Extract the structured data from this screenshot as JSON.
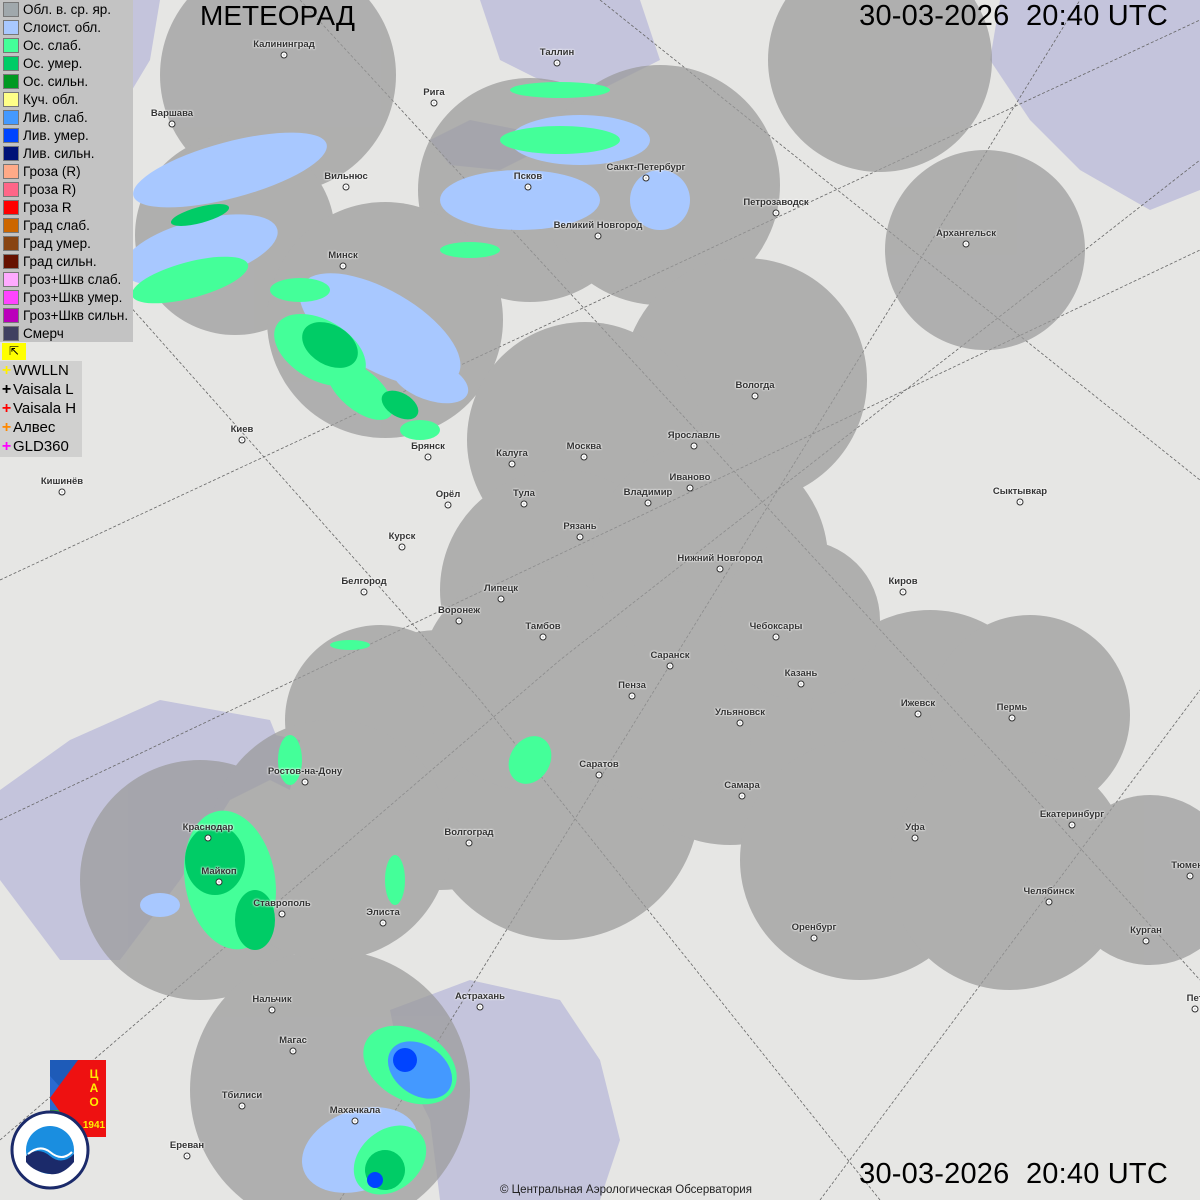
{
  "header": {
    "title": "МЕТЕОРАД",
    "datetime_top": "30-03-2026  20:40 UTC",
    "datetime_bottom": "30-03-2026  20:40 UTC"
  },
  "legend": [
    {
      "label": "Обл. в. ср. яр.",
      "color": "#a0a8ac"
    },
    {
      "label": "Слоист. обл.",
      "color": "#a8c8ff"
    },
    {
      "label": "Ос. слаб.",
      "color": "#44ff99"
    },
    {
      "label": "Ос. умер.",
      "color": "#00cc66"
    },
    {
      "label": "Ос. сильн.",
      "color": "#009922"
    },
    {
      "label": "Куч. обл.",
      "color": "#ffff88"
    },
    {
      "label": "Лив. слаб.",
      "color": "#4499ff"
    },
    {
      "label": "Лив. умер.",
      "color": "#0044ff"
    },
    {
      "label": "Лив. сильн.",
      "color": "#001177"
    },
    {
      "label": "Гроза (R)",
      "color": "#ffaa88"
    },
    {
      "label": "Гроза R)",
      "color": "#ff6688"
    },
    {
      "label": "Гроза R",
      "color": "#ff0000"
    },
    {
      "label": "Град слаб.",
      "color": "#cc6600"
    },
    {
      "label": "Град умер.",
      "color": "#884411"
    },
    {
      "label": "Град сильн.",
      "color": "#661100"
    },
    {
      "label": "Гроз+Шкв слаб.",
      "color": "#ffaaff"
    },
    {
      "label": "Гроз+Шкв умер.",
      "color": "#ff44ff"
    },
    {
      "label": "Гроз+Шкв сильн.",
      "color": "#bb00bb"
    },
    {
      "label": "Смерч",
      "color": "#404060"
    }
  ],
  "lightning_toggle": {
    "icon": "flag-arrow-icon",
    "glyph": "⇱"
  },
  "lightning_networks": [
    {
      "label": "WWLLN",
      "color": "#ffee00"
    },
    {
      "label": "Vaisala L",
      "color": "#000000"
    },
    {
      "label": "Vaisala H",
      "color": "#ff0000"
    },
    {
      "label": "Алвес",
      "color": "#ff8800"
    },
    {
      "label": "GLD360",
      "color": "#ff00ff"
    }
  ],
  "cities": [
    "Калининград",
    "Таллин",
    "Рига",
    "Варшава",
    "Санкт-Петербург",
    "Петрозаводск",
    "Архангельск",
    "Вильнюс",
    "Псков",
    "Великий Новгород",
    "Минск",
    "Вологда",
    "Киев",
    "Брянск",
    "Калуга",
    "Москва",
    "Ярославль",
    "Иваново",
    "Владимир",
    "Кишинёв",
    "Орёл",
    "Тула",
    "Сыктывкар",
    "Рязань",
    "Курск",
    "Нижний Новгород",
    "Киров",
    "Белгород",
    "Липецк",
    "Воронеж",
    "Тамбов",
    "Чебоксары",
    "Саранск",
    "Пенза",
    "Казань",
    "Ижевск",
    "Пермь",
    "Ульяновск",
    "Ростов-на-Дону",
    "Саратов",
    "Самара",
    "Краснодар",
    "Волгоград",
    "Уфа",
    "Екатеринбург",
    "Тюмень",
    "Майкоп",
    "Ставрополь",
    "Элиста",
    "Челябинск",
    "Оренбург",
    "Курган",
    "Астрахань",
    "Нальчик",
    "Магас",
    "Тбилиси",
    "Махачкала",
    "Ереван",
    "Пет"
  ],
  "logos": {
    "cao": "ЦАО 1941",
    "roshydromet": "РОСГИДРОМЕТ ROSHYDROMET"
  },
  "footer": {
    "copyright": "© Центральная Аэрологическая Обсерватория"
  },
  "colors": {
    "radar_coverage": "#9a9a9a",
    "water": "#c4c4dc",
    "land": "#e6e6e4"
  }
}
